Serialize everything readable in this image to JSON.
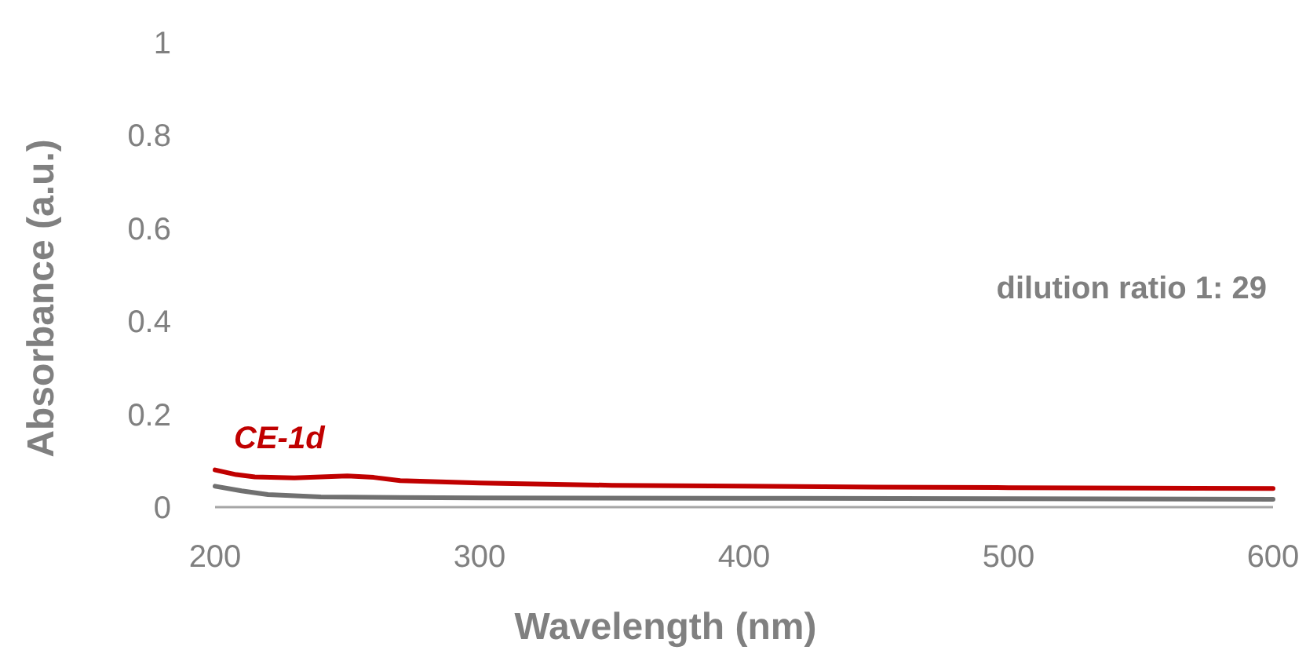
{
  "chart_data": {
    "type": "line",
    "xlabel": "Wavelength (nm)",
    "ylabel": "Absorbance (a.u.)",
    "xlim": [
      200,
      600
    ],
    "xticks": [
      200,
      300,
      400,
      500,
      600
    ],
    "ylim": [
      0,
      1
    ],
    "yticks": [
      0,
      0.2,
      0.4,
      0.6,
      0.8,
      1
    ],
    "grid": false,
    "legend": false,
    "marker": "none",
    "line_style": "solid",
    "annotations": [
      "dilution ratio 1: 29"
    ],
    "series": [
      {
        "name": "CE-1d",
        "color": "#c00000",
        "x": [
          200,
          208,
          215,
          230,
          250,
          260,
          270,
          300,
          350,
          400,
          450,
          500,
          550,
          600
        ],
        "values": [
          0.08,
          0.07,
          0.065,
          0.063,
          0.067,
          0.064,
          0.057,
          0.052,
          0.047,
          0.045,
          0.043,
          0.042,
          0.041,
          0.04
        ]
      },
      {
        "color": "#707070",
        "x": [
          200,
          210,
          220,
          240,
          260,
          300,
          400,
          500,
          600
        ],
        "values": [
          0.045,
          0.035,
          0.027,
          0.022,
          0.021,
          0.02,
          0.019,
          0.018,
          0.017
        ]
      }
    ]
  }
}
